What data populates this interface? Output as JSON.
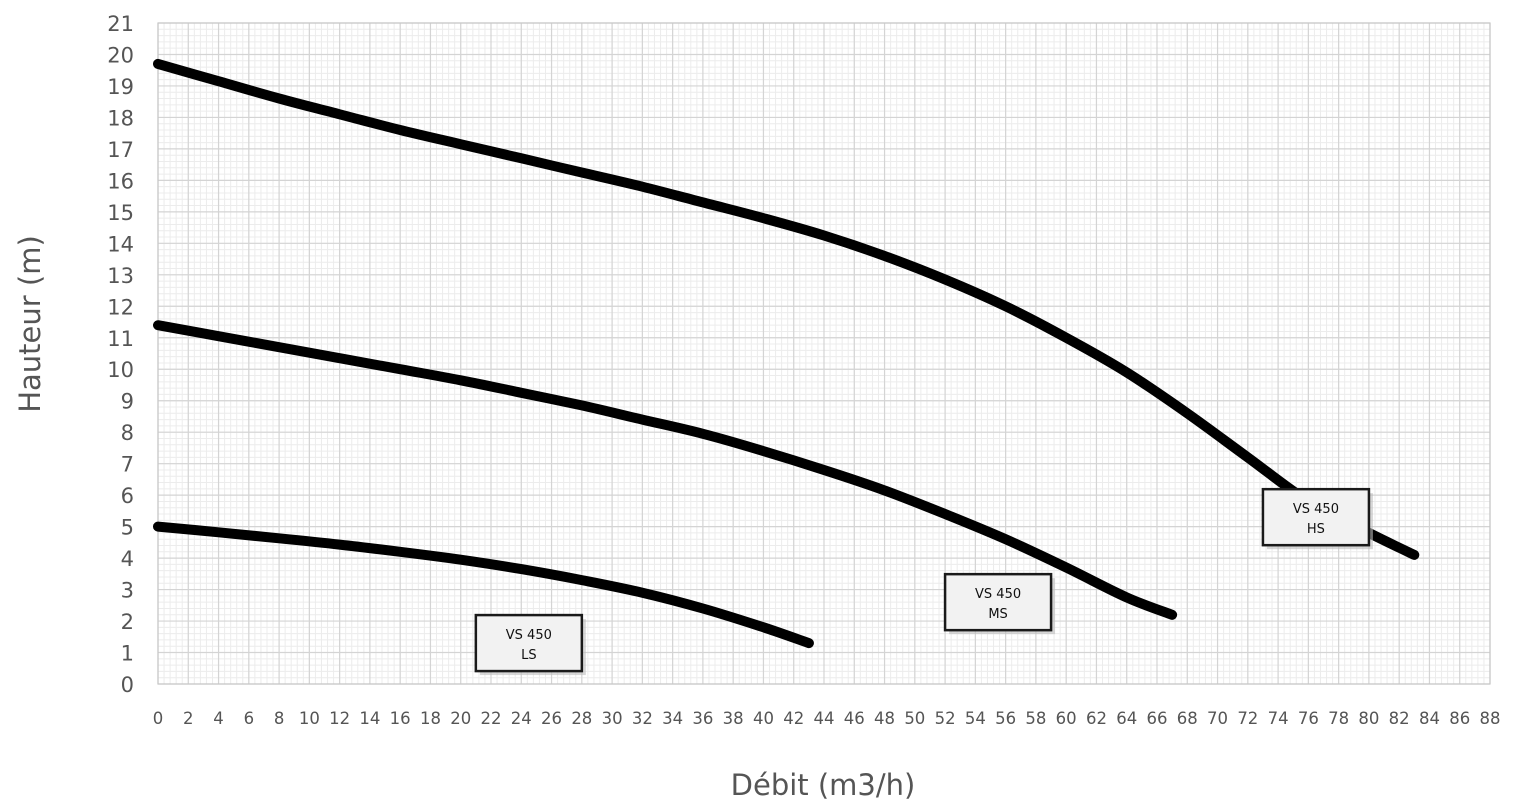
{
  "chart_data": {
    "type": "line",
    "title": "",
    "xlabel": "Débit (m3/h)",
    "ylabel": "Hauteur (m)",
    "xlim": [
      0,
      88
    ],
    "ylim": [
      0,
      21
    ],
    "x_ticks": [
      0,
      2,
      4,
      6,
      8,
      10,
      12,
      14,
      16,
      18,
      20,
      22,
      24,
      26,
      28,
      30,
      32,
      34,
      36,
      38,
      40,
      42,
      44,
      46,
      48,
      50,
      52,
      54,
      56,
      58,
      60,
      62,
      64,
      66,
      68,
      70,
      72,
      74,
      76,
      78,
      80,
      82,
      84,
      86,
      88
    ],
    "y_ticks": [
      0,
      1,
      2,
      3,
      4,
      5,
      6,
      7,
      8,
      9,
      10,
      11,
      12,
      13,
      14,
      15,
      16,
      17,
      18,
      19,
      20,
      21
    ],
    "grid": true,
    "minor_grid": true,
    "series": [
      {
        "label_line1": "VS 450",
        "label_line2": "HS",
        "label_anchor": {
          "x": 76.5,
          "y": 5.3
        },
        "points": [
          [
            0,
            19.7
          ],
          [
            4,
            19.15
          ],
          [
            8,
            18.6
          ],
          [
            12,
            18.1
          ],
          [
            16,
            17.6
          ],
          [
            20,
            17.15
          ],
          [
            24,
            16.7
          ],
          [
            28,
            16.25
          ],
          [
            32,
            15.8
          ],
          [
            36,
            15.3
          ],
          [
            40,
            14.8
          ],
          [
            44,
            14.25
          ],
          [
            48,
            13.6
          ],
          [
            52,
            12.85
          ],
          [
            56,
            12.0
          ],
          [
            60,
            11.0
          ],
          [
            64,
            9.9
          ],
          [
            68,
            8.6
          ],
          [
            72,
            7.2
          ],
          [
            76,
            5.8
          ],
          [
            80,
            4.8
          ],
          [
            83,
            4.1
          ]
        ]
      },
      {
        "label_line1": "VS 450",
        "label_line2": "MS",
        "label_anchor": {
          "x": 55.5,
          "y": 2.6
        },
        "points": [
          [
            0,
            11.4
          ],
          [
            4,
            11.05
          ],
          [
            8,
            10.7
          ],
          [
            12,
            10.35
          ],
          [
            16,
            10.0
          ],
          [
            20,
            9.65
          ],
          [
            24,
            9.25
          ],
          [
            28,
            8.85
          ],
          [
            32,
            8.4
          ],
          [
            36,
            7.95
          ],
          [
            40,
            7.4
          ],
          [
            44,
            6.8
          ],
          [
            48,
            6.15
          ],
          [
            52,
            5.4
          ],
          [
            56,
            4.6
          ],
          [
            60,
            3.7
          ],
          [
            64,
            2.75
          ],
          [
            67,
            2.2
          ]
        ]
      },
      {
        "label_line1": "VS 450",
        "label_line2": "LS",
        "label_anchor": {
          "x": 24.5,
          "y": 1.3
        },
        "points": [
          [
            0,
            5.0
          ],
          [
            4,
            4.82
          ],
          [
            8,
            4.63
          ],
          [
            12,
            4.43
          ],
          [
            16,
            4.2
          ],
          [
            20,
            3.95
          ],
          [
            24,
            3.65
          ],
          [
            28,
            3.3
          ],
          [
            32,
            2.9
          ],
          [
            36,
            2.4
          ],
          [
            40,
            1.8
          ],
          [
            43,
            1.3
          ]
        ]
      }
    ]
  }
}
